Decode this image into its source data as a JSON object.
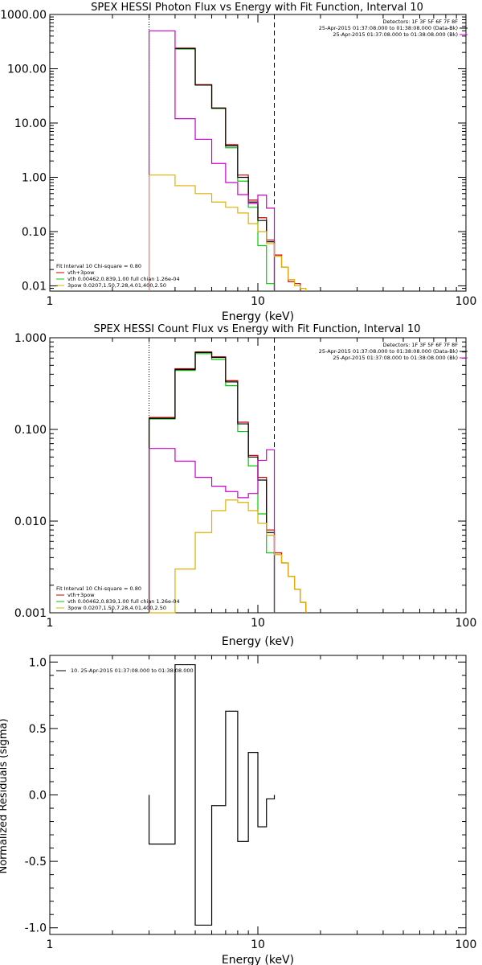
{
  "chart_data": [
    {
      "type": "line",
      "title": "SPEX HESSI Photon Flux vs Energy with Fit Function, Interval 10",
      "xlabel": "Energy (keV)",
      "ylabel": "",
      "xscale": "log",
      "yscale": "log",
      "xlim": [
        1,
        100
      ],
      "ylim": [
        0.008,
        1000
      ],
      "xticks": [
        "1",
        "10",
        "100"
      ],
      "yticks": [
        {
          "v": 1000,
          "t": "1000.00"
        },
        {
          "v": 100,
          "t": "100.00"
        },
        {
          "v": 10,
          "t": "10.00"
        },
        {
          "v": 1,
          "t": "1.00"
        },
        {
          "v": 0.1,
          "t": "0.10"
        },
        {
          "v": 0.01,
          "t": "0.01"
        }
      ],
      "vlines": [
        {
          "x": 3.0,
          "style": "dotted",
          "color": "#000000"
        },
        {
          "x": 12.0,
          "style": "dashed",
          "color": "#000000"
        }
      ],
      "top_legend": {
        "header": "Detectors: 1F 3F 5F 6F 7F 8F",
        "entries": [
          {
            "text": "25-Apr-2015 01:37:08.000 to 01:38:08.000 (Data-Bk)",
            "color": "#000000"
          },
          {
            "text": "25-Apr-2015 01:37:08.000 to 01:38:08.000 (Bk)",
            "color": "#cc00cc"
          }
        ]
      },
      "fit_legend": {
        "header": "Fit Interval 10   Chi-square = 0.80",
        "entries": [
          {
            "text": "vth+3pow",
            "color": "#cc0000"
          },
          {
            "text": "vth 0.00462,0.839,1.00  full chian 1.26e-04",
            "color": "#00cc00"
          },
          {
            "text": "3pow 0.0207,1.50,7.28,4.01,400,2.50",
            "color": "#e0b000"
          }
        ]
      },
      "edges": [
        3.0,
        4.0,
        5.0,
        6.0,
        7.0,
        8.0,
        9.0,
        10.0,
        11.0,
        12.0,
        13.0,
        14.0,
        15.0,
        16.0,
        17.0,
        18.0
      ],
      "series": [
        {
          "color": "#00cc00",
          "values": [
            null,
            230,
            50,
            18.5,
            3.5,
            0.85,
            0.28,
            0.055,
            0.011,
            null,
            null,
            null,
            null,
            null,
            null
          ]
        },
        {
          "color": "#cc0000",
          "values": [
            null,
            240,
            51,
            19,
            4.0,
            1.1,
            0.38,
            0.18,
            0.07,
            0.037,
            0.022,
            0.012,
            0.011,
            null,
            null
          ]
        },
        {
          "color": "#000000",
          "values": [
            null,
            235,
            50,
            18.8,
            3.8,
            1.0,
            0.35,
            0.16,
            0.065,
            null,
            null,
            null,
            null,
            null,
            null
          ]
        },
        {
          "color": "#cc00cc",
          "values": [
            500,
            12,
            5.0,
            1.8,
            0.8,
            0.48,
            0.33,
            0.47,
            0.27,
            null,
            null,
            null,
            null,
            null,
            null
          ]
        },
        {
          "color": "#e0b000",
          "values": [
            1.1,
            0.7,
            0.5,
            0.35,
            0.28,
            0.22,
            0.14,
            0.1,
            0.06,
            0.035,
            0.022,
            0.013,
            0.01,
            0.009,
            null
          ]
        }
      ]
    },
    {
      "type": "line",
      "title": "SPEX HESSI Count Flux vs Energy with Fit Function, Interval 10",
      "xlabel": "Energy (keV)",
      "ylabel": "",
      "xscale": "log",
      "yscale": "log",
      "xlim": [
        1,
        100
      ],
      "ylim": [
        0.001,
        1.0
      ],
      "xticks": [
        "1",
        "10",
        "100"
      ],
      "yticks": [
        {
          "v": 1.0,
          "t": "1.000"
        },
        {
          "v": 0.1,
          "t": "0.100"
        },
        {
          "v": 0.01,
          "t": "0.010"
        },
        {
          "v": 0.001,
          "t": "0.001"
        }
      ],
      "vlines": [
        {
          "x": 3.0,
          "style": "dotted",
          "color": "#000000"
        },
        {
          "x": 12.0,
          "style": "dashed",
          "color": "#000000"
        }
      ],
      "top_legend": {
        "header": "Detectors: 1F 3F 5F 6F 7F 8F",
        "entries": [
          {
            "text": "25-Apr-2015 01:37:08.000 to 01:38:08.000 (Data-Bk)",
            "color": "#000000"
          },
          {
            "text": "25-Apr-2015 01:37:08.000 to 01:38:08.000 (Bk)",
            "color": "#cc00cc"
          }
        ]
      },
      "fit_legend": {
        "header": "Fit Interval 10   Chi-square = 0.80",
        "entries": [
          {
            "text": "vth+3pow",
            "color": "#cc0000"
          },
          {
            "text": "vth 0.00462,0.839,1.00  full chian 1.26e-04",
            "color": "#00cc00"
          },
          {
            "text": "3pow 0.0207,1.50,7.28,4.01,400,2.50",
            "color": "#e0b000"
          }
        ]
      },
      "edges": [
        3.0,
        4.0,
        5.0,
        6.0,
        7.0,
        8.0,
        9.0,
        10.0,
        11.0,
        12.0,
        13.0,
        14.0,
        15.0,
        16.0,
        17.0,
        18.0
      ],
      "series": [
        {
          "color": "#00cc00",
          "values": [
            0.13,
            0.44,
            0.67,
            0.58,
            0.3,
            0.095,
            0.04,
            0.012,
            0.0045,
            null,
            null,
            null,
            null,
            null,
            null
          ]
        },
        {
          "color": "#cc0000",
          "values": [
            0.135,
            0.46,
            0.7,
            0.62,
            0.34,
            0.12,
            0.052,
            0.03,
            0.008,
            0.0045,
            0.0035,
            0.0025,
            0.0018,
            0.0013,
            null
          ]
        },
        {
          "color": "#000000",
          "values": [
            0.132,
            0.45,
            0.69,
            0.61,
            0.33,
            0.115,
            0.05,
            0.028,
            0.0075,
            null,
            null,
            null,
            null,
            null,
            null
          ]
        },
        {
          "color": "#cc00cc",
          "values": [
            0.062,
            0.045,
            0.03,
            0.024,
            0.021,
            0.018,
            0.02,
            0.046,
            0.06,
            null,
            null,
            null,
            null,
            null,
            null
          ]
        },
        {
          "color": "#e0b000",
          "values": [
            0.00095,
            0.003,
            0.0075,
            0.013,
            0.017,
            0.016,
            0.013,
            0.0095,
            0.007,
            0.0043,
            0.0035,
            0.0025,
            0.0018,
            0.0013,
            null
          ]
        }
      ]
    },
    {
      "type": "line",
      "title": "",
      "xlabel": "Energy (keV)",
      "ylabel": "Normalized Residuals (sigma)",
      "xscale": "log",
      "yscale": "linear",
      "xlim": [
        1,
        100
      ],
      "ylim": [
        -1.05,
        1.05
      ],
      "xticks": [
        "1",
        "10",
        "100"
      ],
      "yticks": [
        {
          "v": 1.0,
          "t": "1.0"
        },
        {
          "v": 0.5,
          "t": "0.5"
        },
        {
          "v": 0.0,
          "t": "0.0"
        },
        {
          "v": -0.5,
          "t": "-0.5"
        },
        {
          "v": -1.0,
          "t": "-1.0"
        }
      ],
      "legend": [
        {
          "text": "10. 25-Apr-2015 01:37:08.000 to 01:38:08.000",
          "color": "#000000"
        }
      ],
      "edges": [
        3.0,
        4.0,
        5.0,
        6.0,
        7.0,
        8.0,
        9.0,
        10.0,
        11.0,
        12.0
      ],
      "series": [
        {
          "color": "#000000",
          "values": [
            -0.37,
            0.98,
            -0.98,
            -0.08,
            0.63,
            -0.35,
            0.32,
            -0.24,
            -0.03
          ]
        }
      ]
    }
  ]
}
